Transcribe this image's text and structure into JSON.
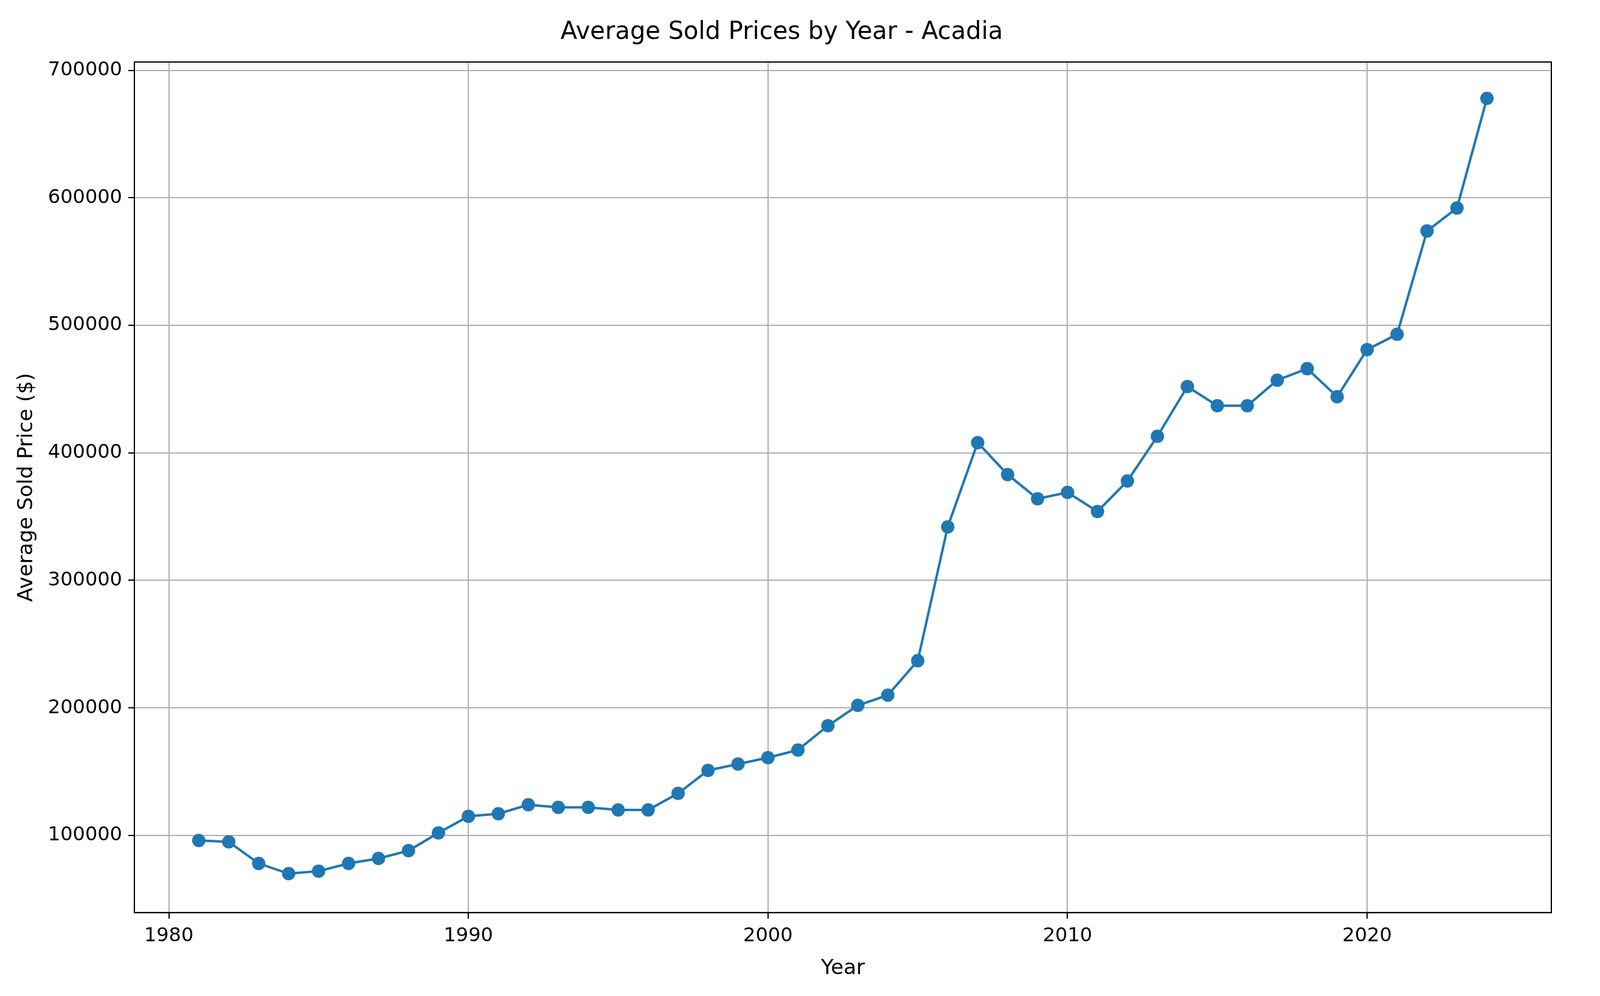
{
  "chart_data": {
    "type": "line",
    "title": "Average Sold Prices by Year - Acadia",
    "x_label": "Year",
    "y_label": "Average Sold Price ($)",
    "x": [
      1981,
      1982,
      1983,
      1984,
      1985,
      1986,
      1987,
      1988,
      1989,
      1990,
      1991,
      1992,
      1993,
      1994,
      1995,
      1996,
      1997,
      1998,
      1999,
      2000,
      2001,
      2002,
      2003,
      2004,
      2005,
      2006,
      2007,
      2008,
      2009,
      2010,
      2011,
      2012,
      2013,
      2014,
      2015,
      2016,
      2017,
      2018,
      2019,
      2020,
      2021,
      2022,
      2023,
      2024
    ],
    "values": [
      96000,
      95000,
      78000,
      70000,
      72000,
      78000,
      82000,
      88000,
      102000,
      115000,
      117000,
      124000,
      122000,
      122000,
      120000,
      120000,
      133000,
      151000,
      156000,
      161000,
      167000,
      186000,
      202000,
      210000,
      237000,
      342000,
      408000,
      383000,
      364000,
      369000,
      354000,
      378000,
      413000,
      452000,
      437000,
      437000,
      457000,
      466000,
      444000,
      481000,
      493000,
      574000,
      592000,
      678000
    ],
    "color": "#1f77b4",
    "marker": "circle",
    "line_style": "solid",
    "xlim": [
      1978.85,
      2026.15
    ],
    "xticks": [
      1980,
      1990,
      2000,
      2010,
      2020
    ],
    "ylim": [
      39500,
      706500
    ],
    "yticks": [
      100000,
      200000,
      300000,
      400000,
      500000,
      600000,
      700000
    ],
    "grid": true
  }
}
